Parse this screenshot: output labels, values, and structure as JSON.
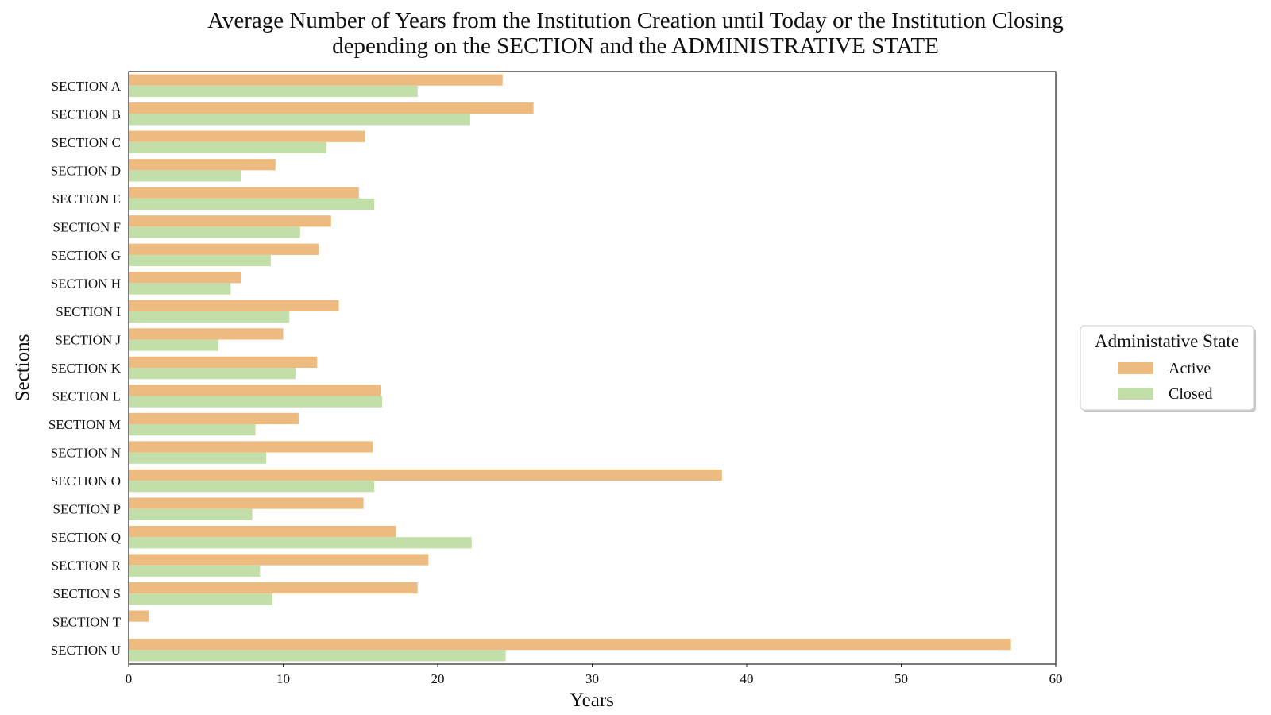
{
  "chart_data": {
    "type": "bar",
    "orientation": "horizontal",
    "title_lines": [
      "Average Number of Years from the Institution Creation until Today or the Institution Closing",
      "depending on the SECTION and the ADMINISTRATIVE STATE"
    ],
    "xlabel": "Years",
    "ylabel": "Sections",
    "xlim": [
      0,
      60
    ],
    "xticks": [
      0,
      10,
      20,
      30,
      40,
      50,
      60
    ],
    "grid": false,
    "legend": {
      "title": "Administative State",
      "placement": "right"
    },
    "categories": [
      "SECTION A",
      "SECTION B",
      "SECTION C",
      "SECTION D",
      "SECTION E",
      "SECTION F",
      "SECTION G",
      "SECTION H",
      "SECTION I",
      "SECTION J",
      "SECTION K",
      "SECTION L",
      "SECTION M",
      "SECTION N",
      "SECTION O",
      "SECTION P",
      "SECTION Q",
      "SECTION R",
      "SECTION S",
      "SECTION T",
      "SECTION U"
    ],
    "series": [
      {
        "name": "Active",
        "color": "#edbb7f",
        "values": [
          24.2,
          26.2,
          15.3,
          9.5,
          14.9,
          13.1,
          12.3,
          7.3,
          13.6,
          10.0,
          12.2,
          16.3,
          11.0,
          15.8,
          38.4,
          15.2,
          17.3,
          19.4,
          18.7,
          1.3,
          57.1
        ]
      },
      {
        "name": "Closed",
        "color": "#c2dfa9",
        "values": [
          18.7,
          22.1,
          12.8,
          7.3,
          15.9,
          11.1,
          9.2,
          6.6,
          10.4,
          5.8,
          10.8,
          16.4,
          8.2,
          8.9,
          15.9,
          8.0,
          22.2,
          8.5,
          9.3,
          null,
          24.4
        ]
      }
    ]
  }
}
